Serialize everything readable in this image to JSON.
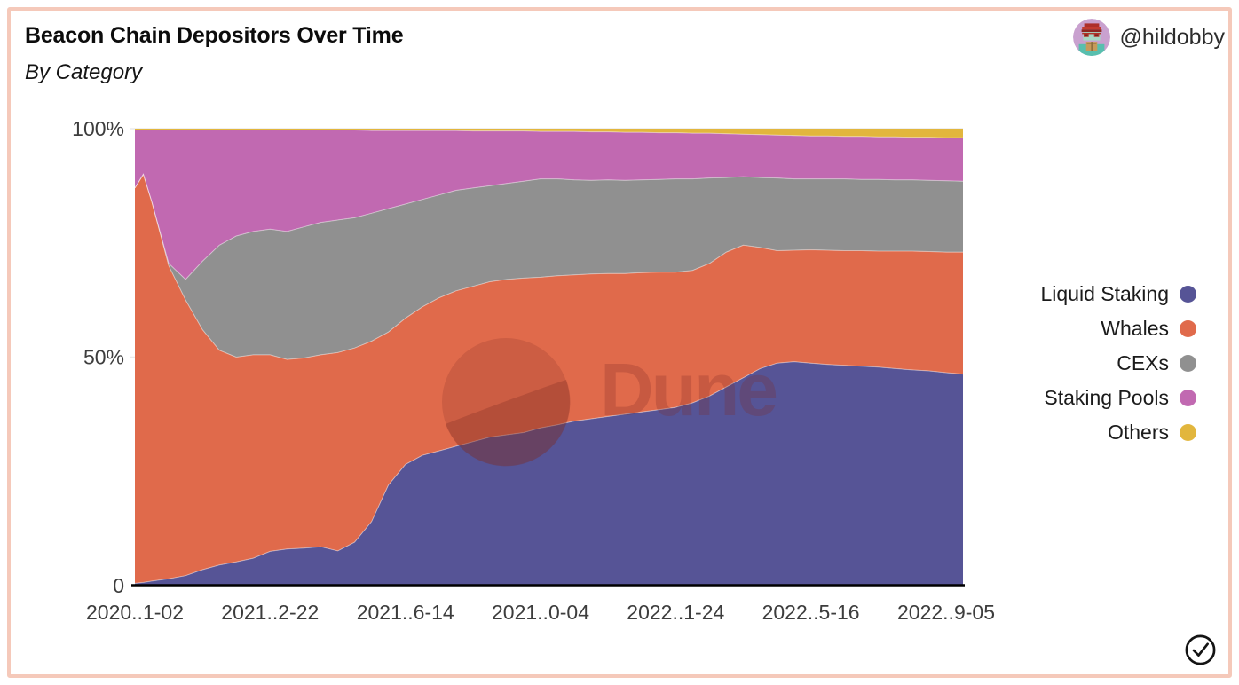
{
  "card": {
    "title": "Beacon Chain Depositors Over Time",
    "subtitle": "By Category",
    "border_color": "#F5C9BA",
    "author": {
      "handle": "@hildobby"
    }
  },
  "watermark": {
    "text": "Dune",
    "color": "#7E2B25"
  },
  "chart_data": {
    "type": "area",
    "stacked": true,
    "percent": true,
    "title": "Beacon Chain Depositors Over Time",
    "subtitle": "By Category",
    "legend_position": "right",
    "grid": false,
    "y_axis": {
      "tick_labels": [
        "0",
        "50%",
        "100%"
      ],
      "tick_values": [
        0,
        50,
        100
      ],
      "range": [
        0,
        100
      ]
    },
    "x_axis": {
      "tick_labels": [
        "2020..1-02",
        "2021..2-22",
        "2021..6-14",
        "2021..0-04",
        "2022..1-24",
        "2022..5-16",
        "2022..9-05"
      ],
      "tick_weeks": [
        0,
        16,
        32,
        48,
        64,
        80,
        96
      ],
      "max_week": 98
    },
    "weeks": [
      0,
      1,
      2,
      4,
      6,
      8,
      10,
      12,
      14,
      16,
      18,
      20,
      22,
      24,
      26,
      28,
      30,
      32,
      34,
      36,
      38,
      40,
      42,
      44,
      46,
      48,
      50,
      52,
      54,
      56,
      58,
      60,
      62,
      64,
      66,
      68,
      70,
      72,
      74,
      76,
      78,
      80,
      82,
      84,
      86,
      88,
      90,
      92,
      94,
      96,
      98
    ],
    "series": [
      {
        "name": "Liquid Staking",
        "color": "#565496",
        "values": [
          0.5,
          0.7,
          1.0,
          1.5,
          2.2,
          3.5,
          4.5,
          5.2,
          6.0,
          7.5,
          8.0,
          8.2,
          8.5,
          7.6,
          9.5,
          14,
          22,
          26.5,
          28.5,
          29.5,
          30.5,
          31.5,
          32.5,
          33,
          33.5,
          34.5,
          35.2,
          36,
          36.5,
          37,
          37.5,
          38,
          38.5,
          39,
          40,
          41.5,
          43.5,
          45.5,
          47.5,
          48.7,
          49,
          48.7,
          48.4,
          48.2,
          48,
          47.8,
          47.5,
          47.2,
          47,
          46.6,
          46.3
        ]
      },
      {
        "name": "Whales",
        "color": "#E06A4B",
        "values": [
          86.5,
          89.3,
          83,
          68.5,
          60.3,
          52.5,
          47,
          44.8,
          44.5,
          43,
          41.5,
          41.6,
          42,
          43.4,
          42.5,
          39.5,
          33.5,
          32,
          32.5,
          33.5,
          34,
          34,
          34,
          34,
          33.8,
          33,
          32.6,
          32,
          31.7,
          31.3,
          30.8,
          30.5,
          30.1,
          29.6,
          29,
          29,
          29.5,
          29,
          26.5,
          24.6,
          24.4,
          24.8,
          25,
          25.1,
          25.3,
          25.4,
          25.7,
          26,
          26.1,
          26.4,
          26.7
        ]
      },
      {
        "name": "CEXs",
        "color": "#909090",
        "values": [
          0,
          0,
          0,
          0.5,
          4.5,
          15,
          23,
          26.5,
          27,
          27.5,
          28,
          28.7,
          29,
          29,
          28.5,
          28,
          27,
          25,
          23.5,
          22.5,
          22,
          21.5,
          21,
          21,
          21.2,
          21.5,
          21.2,
          20.8,
          20.5,
          20.5,
          20.4,
          20.3,
          20.3,
          20.4,
          20,
          18.7,
          16.3,
          15,
          15.3,
          15.9,
          15.6,
          15.5,
          15.6,
          15.7,
          15.6,
          15.7,
          15.6,
          15.6,
          15.6,
          15.6,
          15.5
        ]
      },
      {
        "name": "Staking Pools",
        "color": "#C169B1",
        "values": [
          12.7,
          9.7,
          15.7,
          29.2,
          32.7,
          28.7,
          25.2,
          23.2,
          22.2,
          21.7,
          22.2,
          21.2,
          20.2,
          19.7,
          19.2,
          18.1,
          17.1,
          16.1,
          15.1,
          14.1,
          13.1,
          12.5,
          12,
          11.5,
          11,
          10.4,
          10.4,
          10.6,
          10.6,
          10.5,
          10.5,
          10.4,
          10.2,
          10.1,
          10,
          9.8,
          9.6,
          9.3,
          9.4,
          9.4,
          9.5,
          9.4,
          9.4,
          9.3,
          9.4,
          9.3,
          9.4,
          9.3,
          9.4,
          9.4,
          9.5
        ]
      },
      {
        "name": "Others",
        "color": "#E2B63D",
        "values": [
          0.3,
          0.3,
          0.3,
          0.3,
          0.3,
          0.3,
          0.3,
          0.3,
          0.3,
          0.3,
          0.3,
          0.3,
          0.3,
          0.3,
          0.3,
          0.4,
          0.4,
          0.4,
          0.4,
          0.4,
          0.4,
          0.5,
          0.5,
          0.5,
          0.5,
          0.6,
          0.6,
          0.6,
          0.7,
          0.7,
          0.8,
          0.8,
          0.9,
          0.9,
          1.0,
          1.0,
          1.1,
          1.2,
          1.3,
          1.4,
          1.5,
          1.6,
          1.6,
          1.7,
          1.7,
          1.8,
          1.8,
          1.9,
          1.9,
          2.0,
          2.0
        ]
      }
    ]
  }
}
